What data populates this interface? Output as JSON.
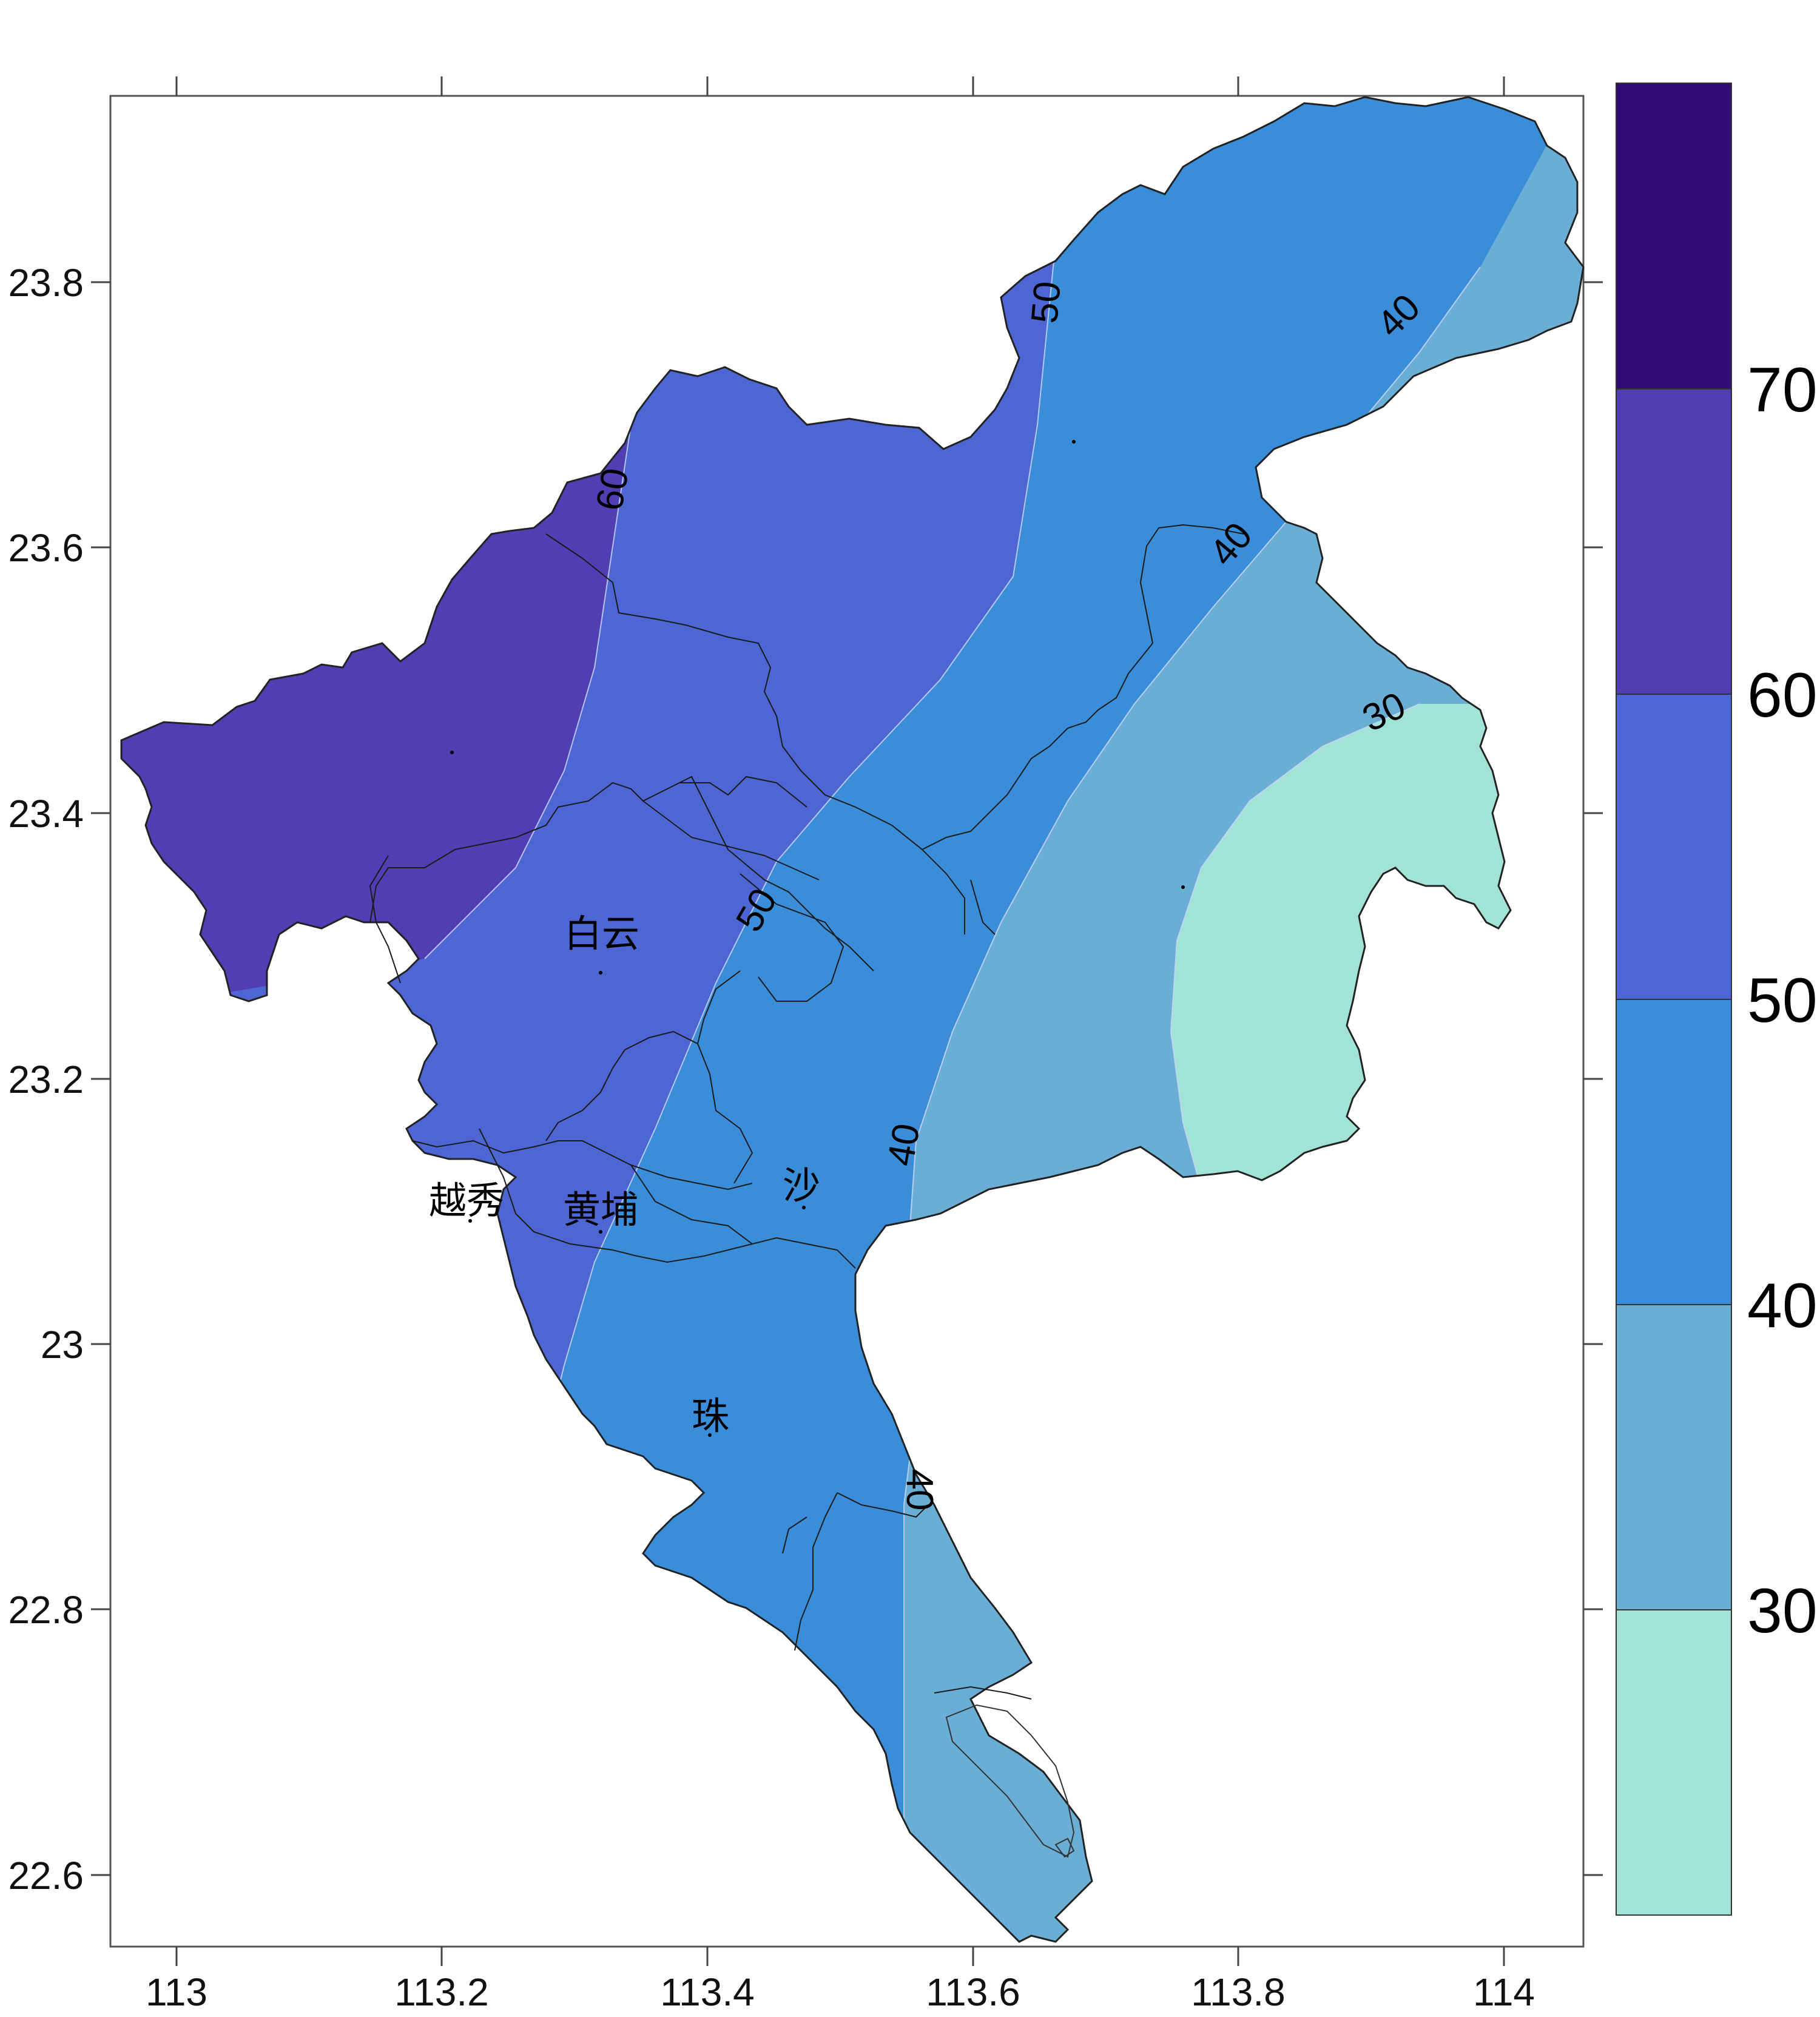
{
  "chart_data": {
    "type": "filled-contour-map",
    "x_ticks": [
      "113",
      "113.2",
      "113.4",
      "113.6",
      "113.8",
      "114"
    ],
    "y_ticks": [
      "23.8",
      "23.6",
      "23.4",
      "23.2",
      "23",
      "22.8",
      "22.6"
    ],
    "xlim": [
      112.95,
      114.06
    ],
    "ylim": [
      22.55,
      23.93
    ],
    "legend": {
      "placement": "right",
      "labels": [
        "70",
        "60",
        "50",
        "40",
        "30"
      ],
      "colors": [
        "#310c78",
        "#523eb3",
        "#4d66d4",
        "#3a8ed9",
        "#6baed5",
        "#a1e3d6"
      ]
    },
    "contour_labels": [
      "60",
      "50",
      "50",
      "40",
      "40",
      "30",
      "40",
      "40"
    ],
    "districts": [
      "白云",
      "越秀",
      "黄埔",
      "沙",
      "珠"
    ]
  }
}
